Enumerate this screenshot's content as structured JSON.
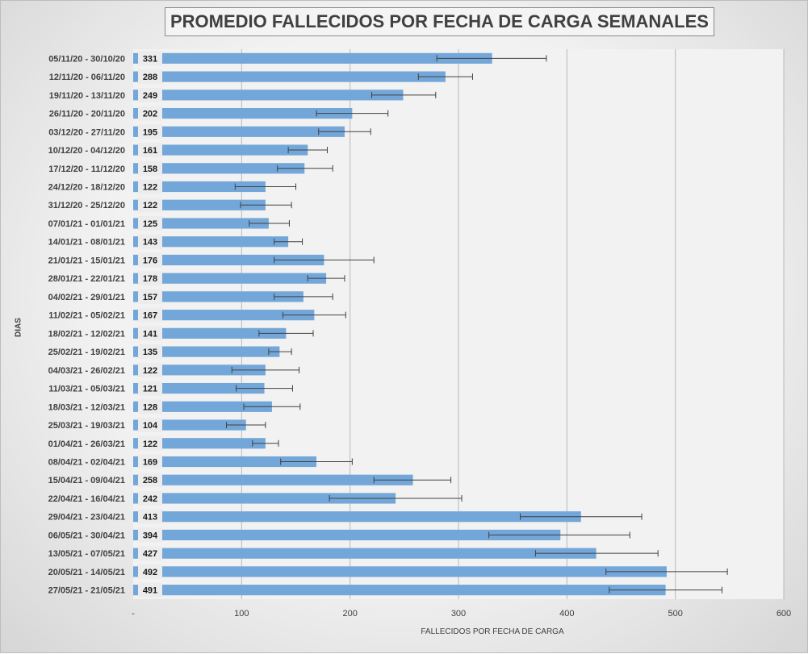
{
  "chart_data": {
    "type": "bar",
    "orientation": "horizontal",
    "title": "PROMEDIO FALLECIDOS POR FECHA DE CARGA SEMANALES",
    "xlabel": "FALLECIDOS POR FECHA DE CARGA",
    "ylabel": "DIAS",
    "xlim": [
      0,
      600
    ],
    "x_ticks": [
      "-",
      "100",
      "200",
      "300",
      "400",
      "500",
      "600"
    ],
    "grid": "vertical",
    "bar_color": "#73a7d9",
    "error_bar_color": "#404040",
    "categories": [
      "05/11/20 - 30/10/20",
      "12/11/20 - 06/11/20",
      "19/11/20 - 13/11/20",
      "26/11/20 - 20/11/20",
      "03/12/20 - 27/11/20",
      "10/12/20 - 04/12/20",
      "17/12/20 - 11/12/20",
      "24/12/20 - 18/12/20",
      "31/12/20 - 25/12/20",
      "07/01/21 - 01/01/21",
      "14/01/21 - 08/01/21",
      "21/01/21 - 15/01/21",
      "28/01/21 - 22/01/21",
      "04/02/21 - 29/01/21",
      "11/02/21 - 05/02/21",
      "18/02/21 - 12/02/21",
      "25/02/21 - 19/02/21",
      "04/03/21 - 26/02/21",
      "11/03/21 - 05/03/21",
      "18/03/21 - 12/03/21",
      "25/03/21 - 19/03/21",
      "01/04/21 - 26/03/21",
      "08/04/21 - 02/04/21",
      "15/04/21 - 09/04/21",
      "22/04/21 - 16/04/21",
      "29/04/21 - 23/04/21",
      "06/05/21 - 30/04/21",
      "13/05/21 - 07/05/21",
      "20/05/21 - 14/05/21",
      "27/05/21 - 21/05/21"
    ],
    "values": [
      331,
      288,
      249,
      202,
      195,
      161,
      158,
      122,
      122,
      125,
      143,
      176,
      178,
      157,
      167,
      141,
      135,
      122,
      121,
      128,
      104,
      122,
      169,
      258,
      242,
      413,
      394,
      427,
      492,
      491
    ],
    "error_low": [
      280,
      263,
      220,
      169,
      171,
      143,
      133,
      94,
      99,
      107,
      130,
      130,
      161,
      130,
      138,
      116,
      125,
      91,
      95,
      102,
      86,
      110,
      136,
      222,
      181,
      357,
      328,
      371,
      436,
      439
    ],
    "error_high": [
      381,
      313,
      279,
      235,
      219,
      179,
      184,
      150,
      146,
      144,
      156,
      222,
      195,
      184,
      196,
      166,
      146,
      153,
      147,
      154,
      122,
      134,
      202,
      293,
      303,
      469,
      458,
      484,
      548,
      543
    ]
  }
}
